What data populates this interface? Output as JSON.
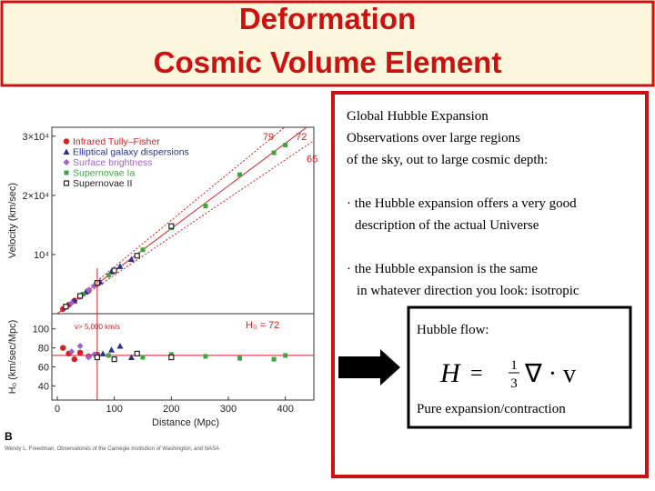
{
  "title_lines": [
    "Deformation",
    "Cosmic Volume Element"
  ],
  "text_box": {
    "heading_lines": [
      "Global Hubble Expansion",
      "Observations over large regions",
      "of the sky, out to large cosmic depth:"
    ],
    "bullets": [
      [
        "· the Hubble expansion offers a very good",
        "description of the actual Universe"
      ],
      [
        "· the Hubble expansion is the same",
        "in whatever direction you look: isotropic"
      ]
    ]
  },
  "equation_box": {
    "label": "Hubble flow:",
    "lhs": "H",
    "eq": "=",
    "num": "1",
    "den": "3",
    "rhs": "∇ · v",
    "caption": "Pure expansion/contraction"
  },
  "figure": {
    "panel_letter": "B",
    "credit": "Wendy L. Freedman, Observatories of the Carnegie Institution of Washington, and NASA"
  },
  "chart_data": [
    {
      "type": "scatter",
      "ylabel": "Velocity (km/sec)",
      "xlim": [
        0,
        450
      ],
      "ylim": [
        0,
        31500
      ],
      "yticks": [
        {
          "value": 10000,
          "label": "10⁴"
        },
        {
          "value": 20000,
          "label": "2×10⁴"
        },
        {
          "value": 30000,
          "label": "3×10⁴"
        }
      ],
      "fits": [
        79,
        72,
        65
      ],
      "series": [
        {
          "name": "Infrared Tully–Fisher",
          "color": "#d42020",
          "marker": "circle",
          "x": [
            10,
            20,
            30,
            40,
            55,
            70
          ],
          "values": [
            800,
            1500,
            2200,
            2900,
            3900,
            5100
          ]
        },
        {
          "name": "Elliptical galaxy dispersions",
          "color": "#2a2f9a",
          "marker": "triangle",
          "x": [
            30,
            50,
            75,
            95,
            110,
            130
          ],
          "values": [
            2200,
            3700,
            5400,
            7100,
            8000,
            9200
          ]
        },
        {
          "name": "Surface brightness",
          "color": "#a060d0",
          "marker": "diamond",
          "x": [
            15,
            25,
            40,
            55,
            65
          ],
          "values": [
            1100,
            1800,
            2900,
            4000,
            4700
          ]
        },
        {
          "name": "Supernovae Ia",
          "color": "#3aa83a",
          "marker": "square",
          "x": [
            45,
            90,
            150,
            200,
            260,
            320,
            380,
            400
          ],
          "values": [
            3300,
            6500,
            10800,
            14500,
            18200,
            23500,
            27200,
            28500
          ]
        },
        {
          "name": "Supernovae II",
          "color": "#222222",
          "marker": "open-square",
          "x": [
            15,
            40,
            70,
            100,
            140,
            200
          ],
          "values": [
            1200,
            3000,
            5200,
            7300,
            9800,
            14800
          ]
        }
      ]
    },
    {
      "type": "scatter",
      "ylabel": "H₀ (km/sec/Mpc)",
      "xlabel": "Distance (Mpc)",
      "xlim": [
        0,
        450
      ],
      "ylim": [
        25,
        116
      ],
      "xticks": [
        0,
        100,
        200,
        300,
        400
      ],
      "yticks": [
        40,
        60,
        80,
        100
      ],
      "h0": 72,
      "h0_label": "H₀ = 72",
      "cut_label": "v> 5,000 km/s",
      "cut_distance": 70,
      "series": [
        {
          "color": "#d42020",
          "marker": "circle",
          "x": [
            10,
            20,
            30,
            40,
            55,
            70
          ],
          "values": [
            80,
            74,
            68,
            75,
            71,
            73
          ]
        },
        {
          "color": "#2a2f9a",
          "marker": "triangle",
          "x": [
            80,
            95,
            110,
            130
          ],
          "values": [
            74,
            78,
            82,
            70
          ]
        },
        {
          "color": "#a060d0",
          "marker": "diamond",
          "x": [
            25,
            40,
            55,
            65
          ],
          "values": [
            76,
            82,
            70,
            73
          ]
        },
        {
          "color": "#3aa83a",
          "marker": "square",
          "x": [
            90,
            150,
            200,
            260,
            320,
            380,
            400
          ],
          "values": [
            72,
            70,
            73,
            71,
            69,
            68,
            72
          ]
        },
        {
          "color": "#222222",
          "marker": "open-square",
          "x": [
            70,
            100,
            140,
            200
          ],
          "values": [
            70,
            68,
            74,
            70
          ]
        }
      ]
    }
  ]
}
